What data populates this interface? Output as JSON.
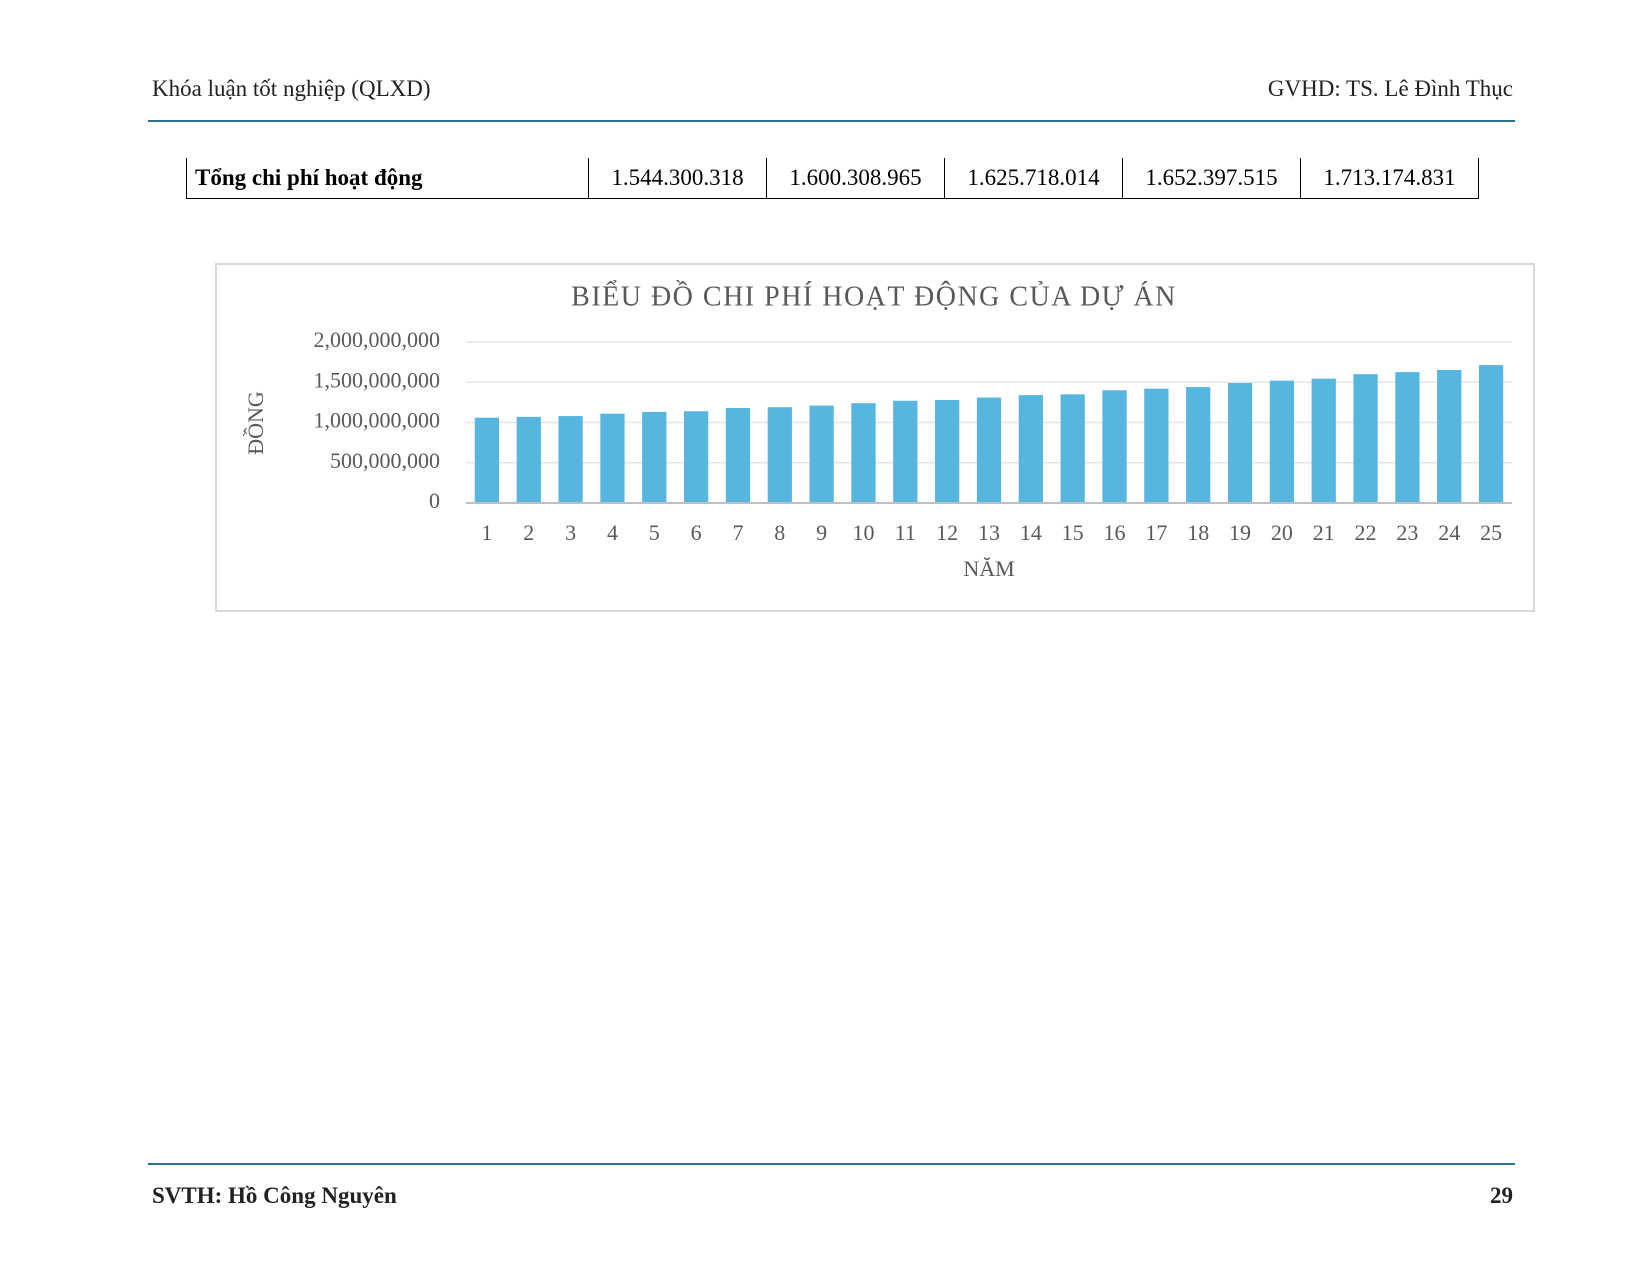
{
  "header": {
    "left": "Khóa luận tốt nghiệp (QLXD)",
    "right": "GVHD: TS. Lê Đình Thục"
  },
  "table": {
    "rows": [
      [
        "Tổng chi phí hoạt động",
        "1.544.300.318",
        "1.600.308.965",
        "1.625.718.014",
        "1.652.397.515",
        "1.713.174.831"
      ]
    ]
  },
  "chart_data": {
    "type": "bar",
    "title": "BIỂU ĐỒ CHI PHÍ HOẠT ĐỘNG CỦA DỰ ÁN",
    "x_label": "NĂM",
    "y_label": "ĐỒNG",
    "categories": [
      "1",
      "2",
      "3",
      "4",
      "5",
      "6",
      "7",
      "8",
      "9",
      "10",
      "11",
      "12",
      "13",
      "14",
      "15",
      "16",
      "17",
      "18",
      "19",
      "20",
      "21",
      "22",
      "23",
      "24",
      "25"
    ],
    "values": [
      1060000000,
      1070000000,
      1080000000,
      1110000000,
      1130000000,
      1140000000,
      1180000000,
      1190000000,
      1210000000,
      1240000000,
      1270000000,
      1280000000,
      1310000000,
      1340000000,
      1350000000,
      1400000000,
      1420000000,
      1440000000,
      1490000000,
      1520000000,
      1544300318,
      1600308965,
      1625718014,
      1652397515,
      1713174831
    ],
    "color": "#56b6e0",
    "ylim": [
      0,
      2000000000
    ],
    "yticks": [
      0,
      {
        "value": 500000000,
        "label": "500,000,000"
      },
      {
        "value": 1000000000,
        "label": "1,000,000,000"
      },
      {
        "value": 1500000000,
        "label": "1,500,000,000"
      },
      {
        "value": 2000000000,
        "label": "2,000,000,000"
      }
    ],
    "grid": true
  },
  "footer": {
    "left": "SVTH: Hồ Công Nguyên",
    "page": "29"
  }
}
